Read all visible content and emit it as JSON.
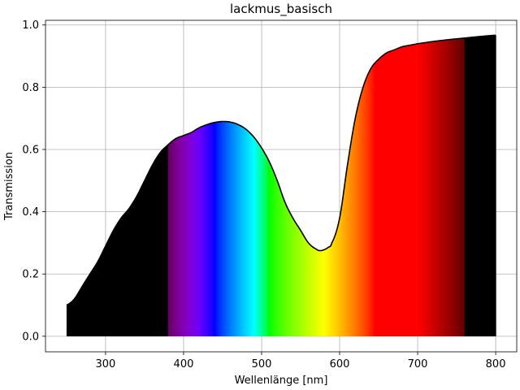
{
  "chart_data": {
    "type": "area",
    "title": "lackmus_basisch",
    "xlabel": "Wellenlänge [nm]",
    "ylabel": "Transmission",
    "xlim": [
      223,
      827
    ],
    "ylim": [
      -0.05,
      1.015
    ],
    "grid": true,
    "xticks": [
      300,
      400,
      500,
      600,
      700,
      800
    ],
    "yticks": [
      0.0,
      0.2,
      0.4,
      0.6,
      0.8,
      1.0
    ],
    "xtick_labels": [
      "300",
      "400",
      "500",
      "600",
      "700",
      "800"
    ],
    "ytick_labels": [
      "0.0",
      "0.2",
      "0.4",
      "0.6",
      "0.8",
      "1.0"
    ],
    "fill": "visible-spectrum gradient (black outside ~380–760 nm)",
    "series": [
      {
        "x": [
          250,
          260,
          270,
          280,
          290,
          300,
          310,
          320,
          330,
          340,
          350,
          360,
          370,
          380,
          390,
          400,
          410,
          420,
          430,
          440,
          450,
          460,
          470,
          480,
          490,
          500,
          510,
          520,
          530,
          540,
          550,
          560,
          570,
          575,
          580,
          585,
          590,
          600,
          610,
          620,
          630,
          640,
          650,
          660,
          670,
          680,
          690,
          700,
          720,
          740,
          760,
          780,
          800
        ],
        "y": [
          0.1,
          0.12,
          0.16,
          0.2,
          0.24,
          0.29,
          0.34,
          0.38,
          0.41,
          0.45,
          0.5,
          0.55,
          0.59,
          0.615,
          0.635,
          0.645,
          0.655,
          0.67,
          0.68,
          0.687,
          0.69,
          0.688,
          0.68,
          0.665,
          0.64,
          0.605,
          0.56,
          0.5,
          0.43,
          0.38,
          0.34,
          0.3,
          0.28,
          0.275,
          0.278,
          0.285,
          0.3,
          0.38,
          0.55,
          0.7,
          0.8,
          0.86,
          0.89,
          0.91,
          0.92,
          0.93,
          0.935,
          0.94,
          0.947,
          0.953,
          0.958,
          0.963,
          0.967
        ]
      }
    ]
  }
}
